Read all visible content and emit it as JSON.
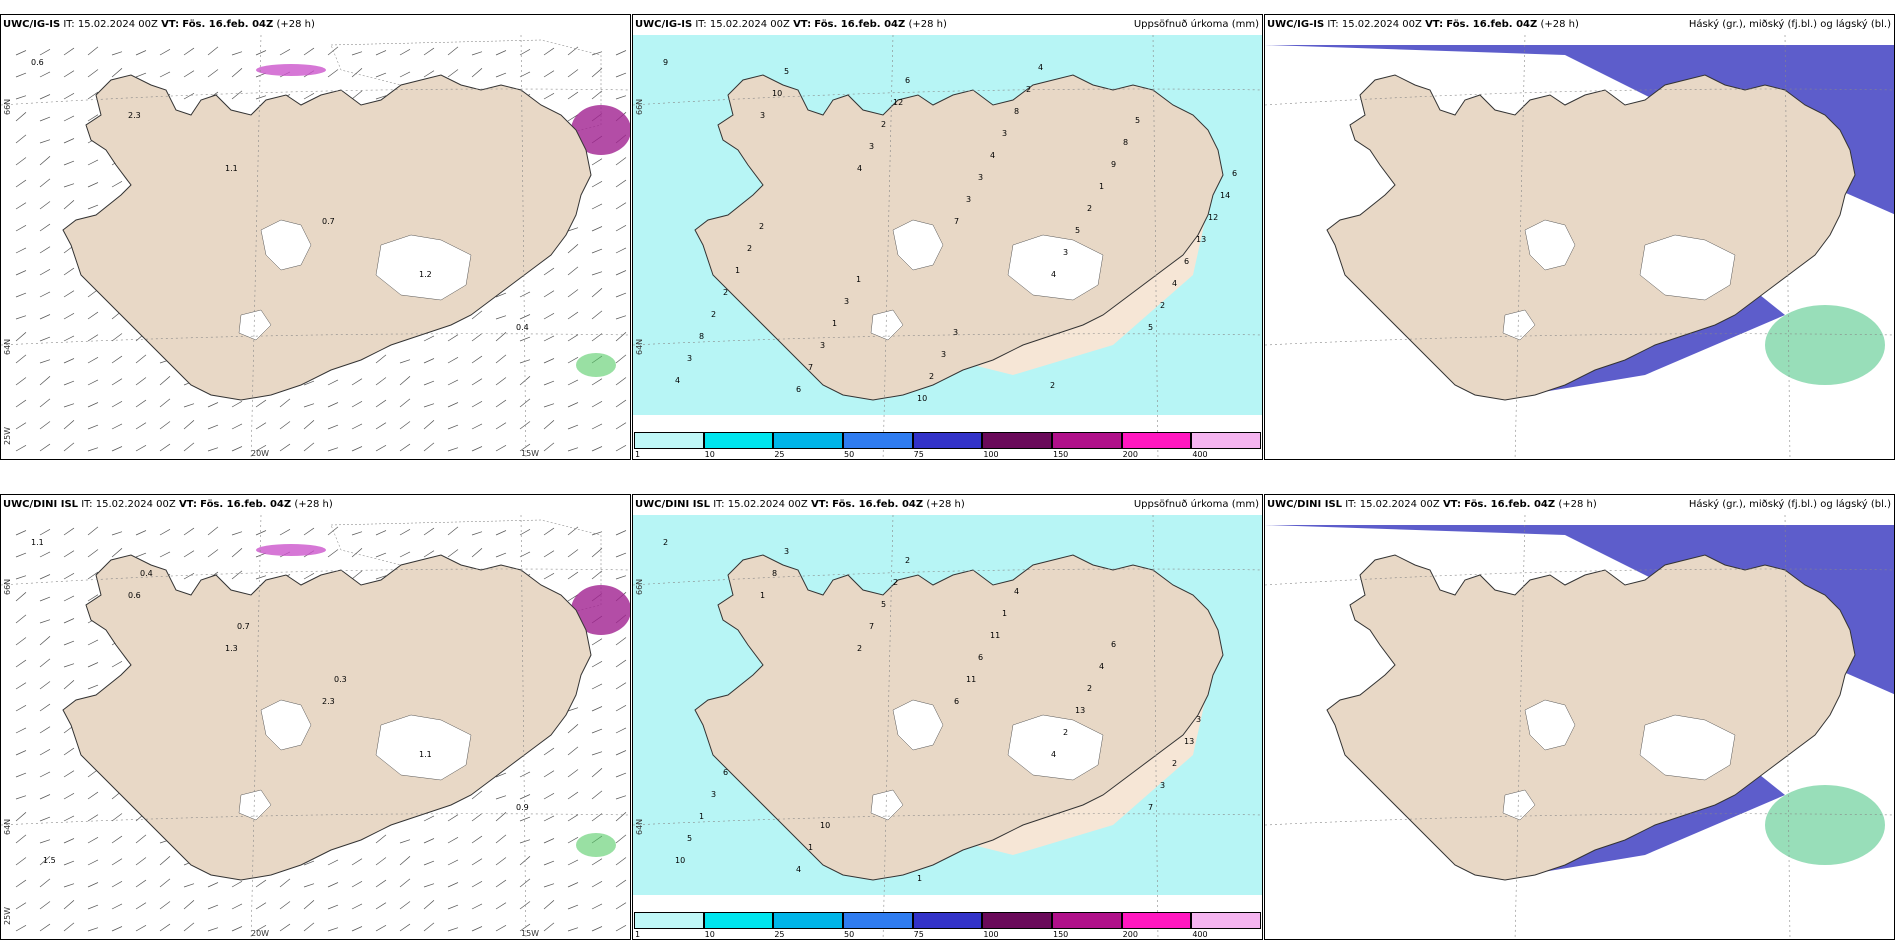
{
  "panels": [
    {
      "model": "UWC/IG-IS",
      "it_label": "IT:",
      "it_value": "15.02.2024 00Z",
      "vt_label": "VT:",
      "vt_value": "Fös. 16.feb. 04Z",
      "lead": "(+28 h)",
      "right_title": "",
      "lat_labels": [
        "66N",
        "64N",
        "25W"
      ],
      "lon_labels": [
        "20W",
        "15W"
      ],
      "numbers": [
        "0.6",
        "2.3",
        "1.1",
        "0.7",
        "1.2",
        "0.4"
      ]
    },
    {
      "model": "UWC/IG-IS",
      "it_label": "IT:",
      "it_value": "15.02.2024 00Z",
      "vt_label": "VT:",
      "vt_value": "Fös. 16.feb. 04Z",
      "lead": "(+28 h)",
      "right_title": "Uppsöfnuð úrkoma (mm)",
      "lat_labels": [
        "66N",
        "64N"
      ],
      "lon_labels": [],
      "numbers": [
        "9",
        "3",
        "4",
        "7",
        "4",
        "5",
        "4",
        "10",
        "3",
        "3",
        "3",
        "2",
        "3",
        "5",
        "2",
        "3",
        "5",
        "4",
        "8",
        "6",
        "12",
        "4",
        "2",
        "6",
        "2",
        "7",
        "6",
        "3",
        "1",
        "13",
        "2",
        "3",
        "10",
        "8",
        "9",
        "12",
        "1",
        "1",
        "2",
        "2",
        "8",
        "14",
        "2",
        "3",
        "3",
        "4",
        "5",
        "6",
        "2",
        "1",
        "3",
        "2"
      ]
    },
    {
      "model": "UWC/IG-IS",
      "it_label": "IT:",
      "it_value": "15.02.2024 00Z",
      "vt_label": "VT:",
      "vt_value": "Fös. 16.feb. 04Z",
      "lead": "(+28 h)",
      "right_title": "Háský (gr.), miðský (fj.bl.) og lágský (bl.)",
      "lat_labels": [],
      "lon_labels": [],
      "numbers": []
    },
    {
      "model": "UWC/DINI ISL",
      "it_label": "IT:",
      "it_value": "15.02.2024 00Z",
      "vt_label": "VT:",
      "vt_value": "Fös. 16.feb. 04Z",
      "lead": "(+28 h)",
      "right_title": "",
      "lat_labels": [
        "66N",
        "64N",
        "25W"
      ],
      "lon_labels": [
        "20W",
        "15W"
      ],
      "numbers": [
        "1.1",
        "0.6",
        "1.3",
        "2.3",
        "1.1",
        "0.9",
        "1.5",
        "0.4",
        "0.7",
        "0.3"
      ]
    },
    {
      "model": "UWC/DINI ISL",
      "it_label": "IT:",
      "it_value": "15.02.2024 00Z",
      "vt_label": "VT:",
      "vt_value": "Fös. 16.feb. 04Z",
      "lead": "(+28 h)",
      "right_title": "Uppsöfnuð úrkoma (mm)",
      "lat_labels": [
        "66N",
        "64N"
      ],
      "lon_labels": [],
      "numbers": [
        "2",
        "1",
        "2",
        "6",
        "4",
        "7",
        "10",
        "8",
        "7",
        "11",
        "2",
        "3",
        "5",
        "3",
        "5",
        "6",
        "13",
        "2",
        "1",
        "4",
        "2",
        "11",
        "2",
        "13",
        "3",
        "1",
        "2",
        "1",
        "4",
        "3",
        "6",
        "10",
        "1",
        "4",
        "6"
      ]
    },
    {
      "model": "UWC/DINI ISL",
      "it_label": "IT:",
      "it_value": "15.02.2024 00Z",
      "vt_label": "VT:",
      "vt_value": "Fös. 16.feb. 04Z",
      "lead": "(+28 h)",
      "right_title": "Háský (gr.), miðský (fj.bl.) og lágský (bl.)",
      "lat_labels": [],
      "lon_labels": [],
      "numbers": []
    }
  ],
  "colorbar": {
    "labels": [
      "1",
      "10",
      "25",
      "50",
      "75",
      "100",
      "150",
      "200",
      "400"
    ],
    "colors": [
      "#bff7f7",
      "#00e5ee",
      "#00b5e8",
      "#2f7cf0",
      "#3232c8",
      "#6a0a5a",
      "#b0108a",
      "#ff18c0",
      "#f5b5f0"
    ]
  },
  "colors": {
    "land": "#e8d8c6",
    "precip_light": "#b7f5f5",
    "sand": "#f6e6d6",
    "low_cloud": "#5454c8",
    "mid_cloud": "#7ed6a8",
    "high_cloud": "#f2503a",
    "ice": "#ffffff",
    "snow_purple": "#cc55cc",
    "rain_green": "#55cc66"
  }
}
